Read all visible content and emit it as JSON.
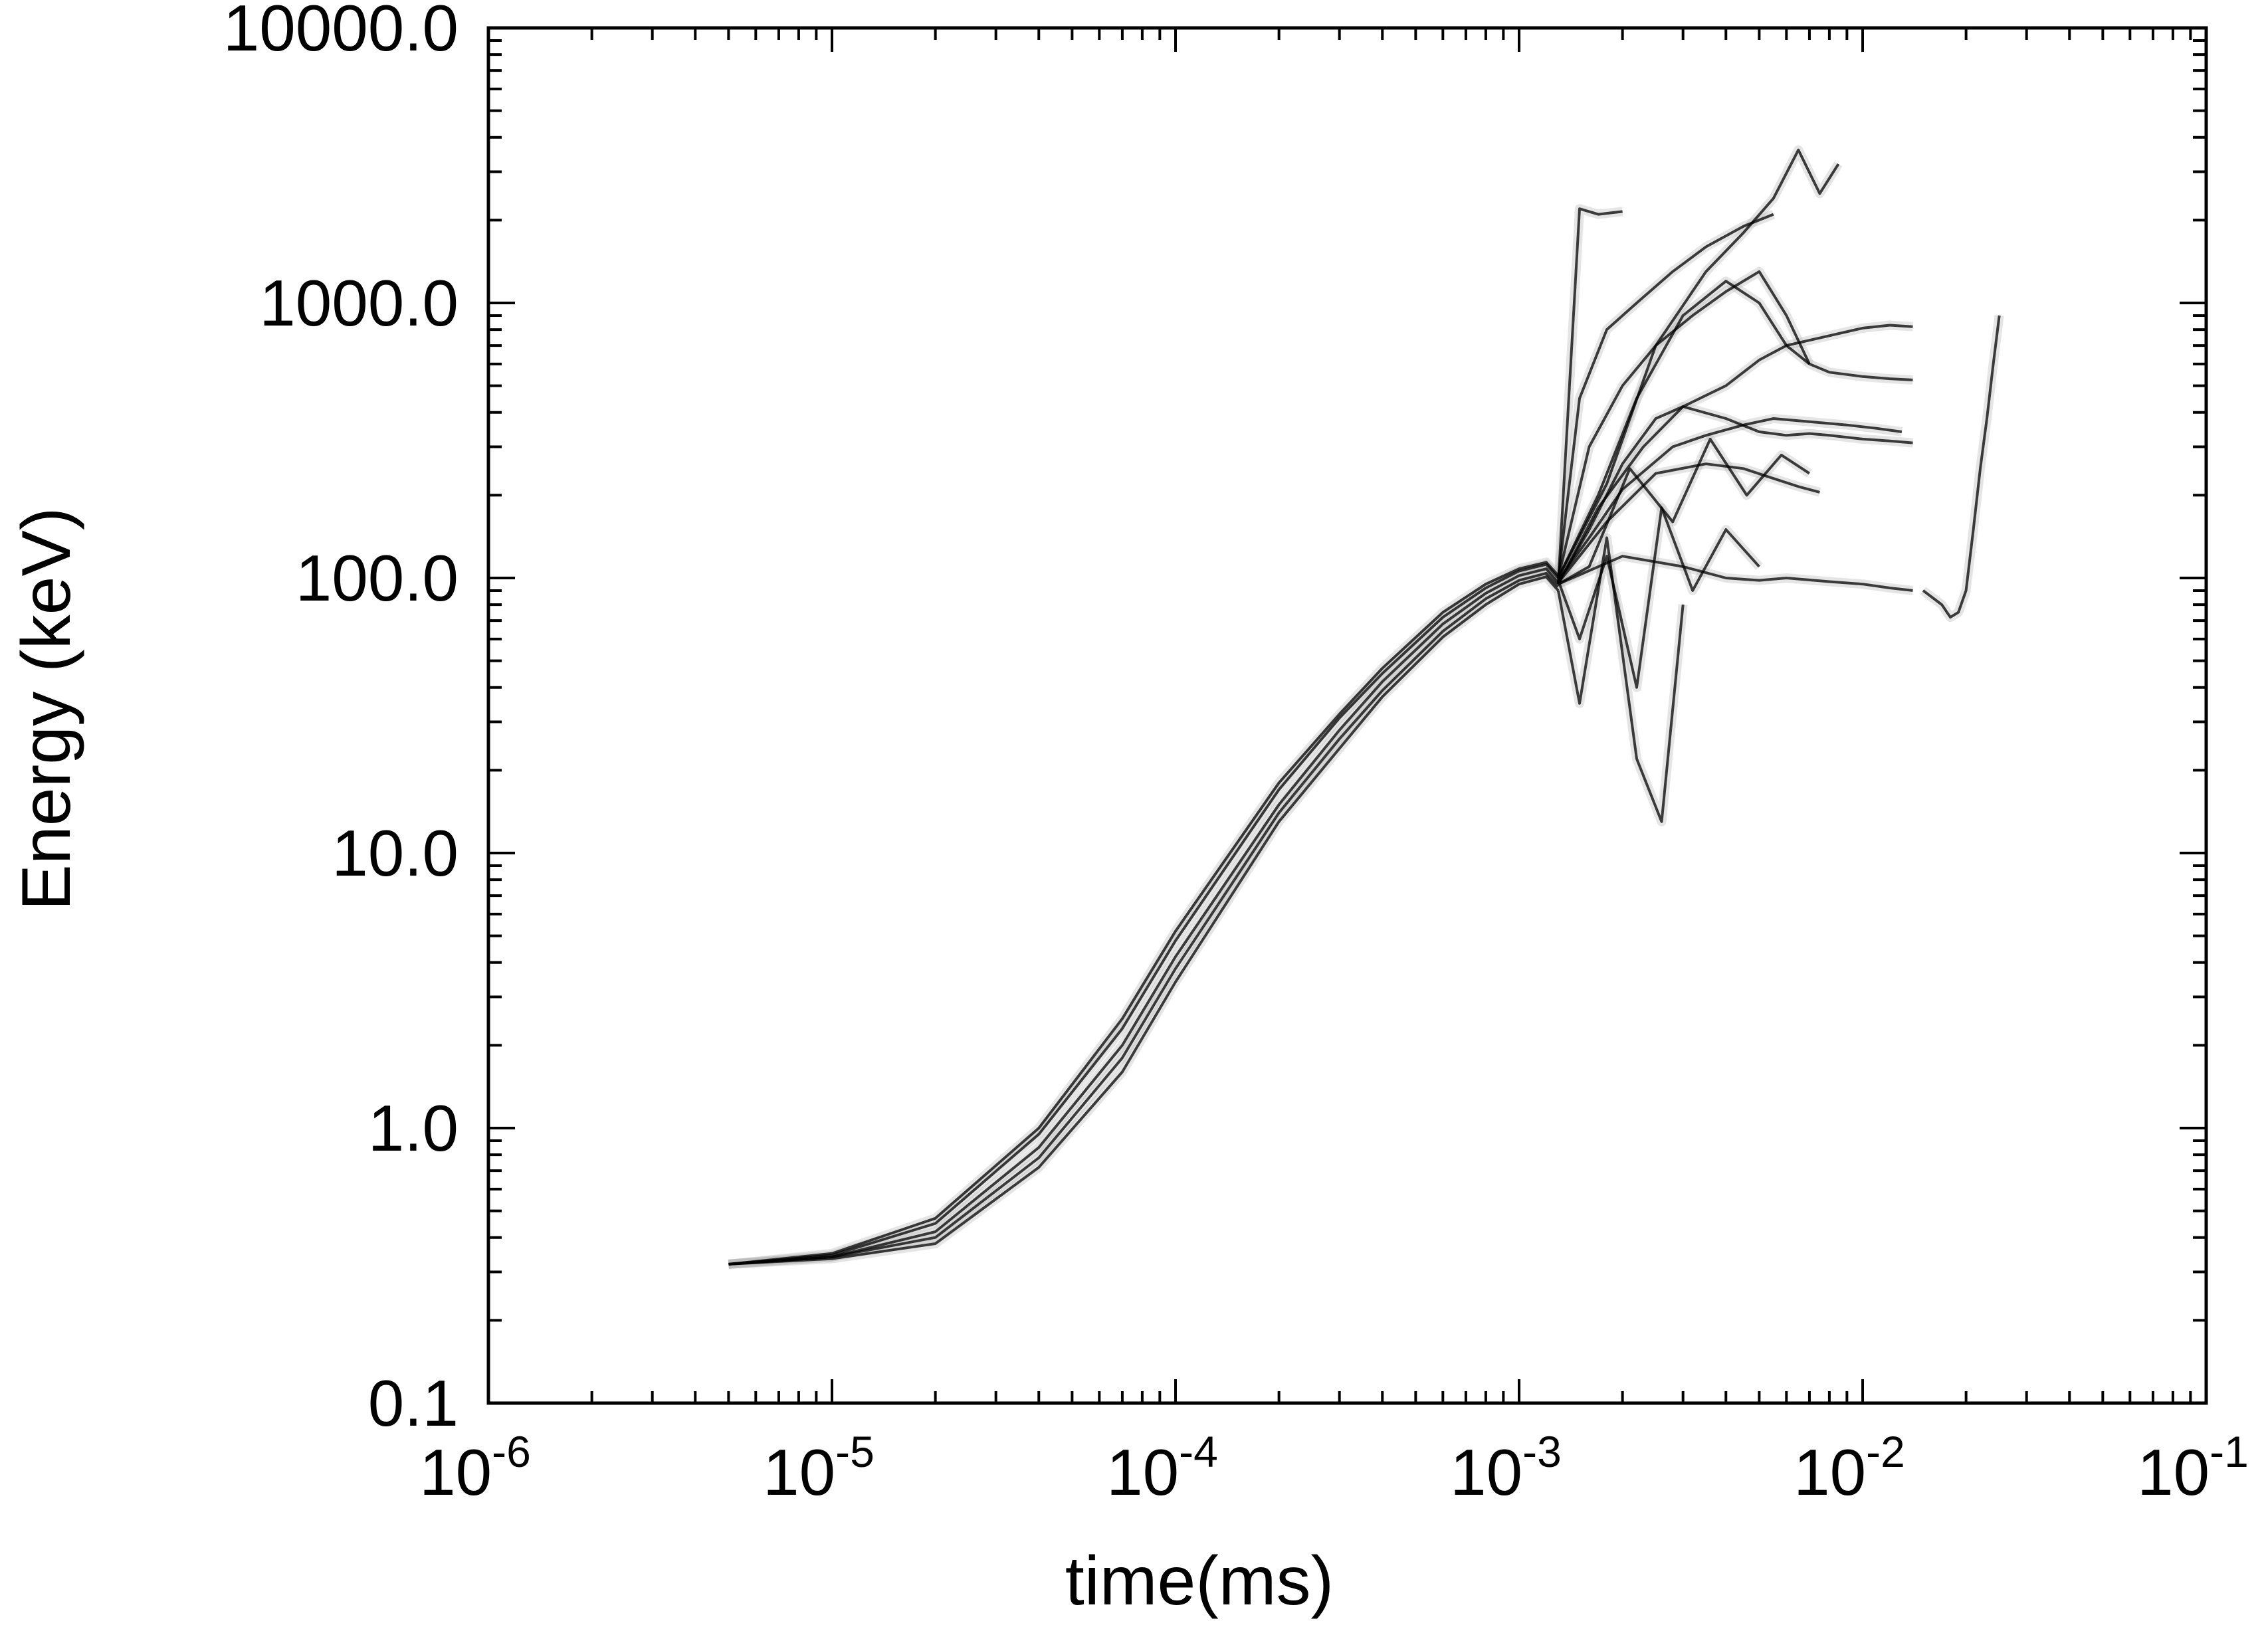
{
  "chart_data": {
    "type": "line",
    "title": "",
    "xlabel": "time(ms)",
    "ylabel": "Energy (keV)",
    "x_scale": "log",
    "y_scale": "log",
    "xlim": [
      1e-06,
      0.1
    ],
    "ylim": [
      0.1,
      10000
    ],
    "grid": false,
    "legend": "none",
    "x_ticks": [
      {
        "value": 1e-06,
        "base": "10",
        "exp": "-6"
      },
      {
        "value": 1e-05,
        "base": "10",
        "exp": "-5"
      },
      {
        "value": 0.0001,
        "base": "10",
        "exp": "-4"
      },
      {
        "value": 0.001,
        "base": "10",
        "exp": "-3"
      },
      {
        "value": 0.01,
        "base": "10",
        "exp": "-2"
      },
      {
        "value": 0.1,
        "base": "10",
        "exp": "-1"
      }
    ],
    "y_ticks": [
      {
        "value": 0.1,
        "label": "0.1"
      },
      {
        "value": 1,
        "label": "1.0"
      },
      {
        "value": 10,
        "label": "10.0"
      },
      {
        "value": 100,
        "label": "100.0"
      },
      {
        "value": 1000,
        "label": "1000.0"
      },
      {
        "value": 10000,
        "label": "10000.0"
      }
    ],
    "line_color": "#000000",
    "faint_line_color": "#b4b4b4",
    "series": [
      {
        "x": [
          5e-06,
          1e-05,
          2e-05,
          4e-05,
          7e-05,
          0.0001,
          0.0002,
          0.0003,
          0.0004,
          0.0006,
          0.0008,
          0.001,
          0.0012,
          0.0013
        ],
        "y": [
          0.32,
          0.34,
          0.42,
          0.85,
          2.0,
          4.2,
          15,
          28,
          42,
          68,
          88,
          102,
          108,
          96
        ]
      },
      {
        "x": [
          5e-06,
          1e-05,
          2e-05,
          4e-05,
          7e-05,
          0.0001,
          0.0002,
          0.0003,
          0.0004,
          0.0006,
          0.0008,
          0.001,
          0.0012,
          0.0013
        ],
        "y": [
          0.32,
          0.345,
          0.45,
          0.95,
          2.3,
          4.8,
          17,
          31,
          45,
          72,
          92,
          106,
          112,
          100
        ]
      },
      {
        "x": [
          5e-06,
          1e-05,
          2e-05,
          4e-05,
          7e-05,
          0.0001,
          0.0002,
          0.0003,
          0.0004,
          0.0006,
          0.0008,
          0.001,
          0.0012,
          0.0013
        ],
        "y": [
          0.32,
          0.34,
          0.4,
          0.78,
          1.8,
          3.8,
          14,
          26,
          39,
          64,
          84,
          98,
          104,
          93
        ]
      },
      {
        "x": [
          5e-06,
          1e-05,
          2e-05,
          4e-05,
          7e-05,
          0.0001,
          0.0002,
          0.0003,
          0.0004,
          0.0006,
          0.0008,
          0.001,
          0.0012,
          0.0013
        ],
        "y": [
          0.32,
          0.35,
          0.47,
          1.0,
          2.5,
          5.2,
          18,
          32,
          47,
          75,
          95,
          108,
          114,
          102
        ]
      },
      {
        "x": [
          5e-06,
          1e-05,
          2e-05,
          4e-05,
          7e-05,
          0.0001,
          0.0002,
          0.0003,
          0.0004,
          0.0006,
          0.0008,
          0.001,
          0.0012,
          0.0013
        ],
        "y": [
          0.32,
          0.335,
          0.38,
          0.72,
          1.6,
          3.4,
          13,
          24,
          37,
          61,
          80,
          95,
          101,
          90
        ]
      },
      {
        "x": [
          0.0013,
          0.0016,
          0.002,
          0.0025,
          0.003,
          0.004,
          0.005,
          0.006,
          0.008,
          0.01,
          0.012,
          0.014
        ],
        "y": [
          96,
          150,
          260,
          380,
          420,
          500,
          620,
          700,
          760,
          810,
          830,
          820
        ]
      },
      {
        "x": [
          0.0013,
          0.0018,
          0.0025,
          0.0035,
          0.0045,
          0.0055,
          0.0065,
          0.0075,
          0.0085
        ],
        "y": [
          100,
          220,
          700,
          1300,
          1800,
          2400,
          3600,
          2500,
          3200
        ]
      },
      {
        "x": [
          0.0013,
          0.0017,
          0.0023,
          0.003,
          0.004,
          0.005,
          0.006,
          0.007,
          0.008,
          0.01,
          0.012,
          0.014
        ],
        "y": [
          95,
          180,
          300,
          420,
          380,
          340,
          330,
          335,
          330,
          320,
          315,
          310
        ]
      },
      {
        "x": [
          0.0013,
          0.0016,
          0.002,
          0.0028,
          0.0035,
          0.0045,
          0.0055,
          0.007,
          0.009,
          0.011,
          0.013
        ],
        "y": [
          98,
          140,
          210,
          300,
          330,
          360,
          380,
          370,
          360,
          350,
          340
        ]
      },
      {
        "x": [
          0.0013,
          0.0018,
          0.0025,
          0.0035,
          0.0045,
          0.0055,
          0.0065,
          0.0075
        ],
        "y": [
          96,
          160,
          240,
          260,
          250,
          230,
          215,
          205
        ]
      },
      {
        "x": [
          0.0013,
          0.002,
          0.003,
          0.004,
          0.005,
          0.006,
          0.008,
          0.01,
          0.012,
          0.014
        ],
        "y": [
          95,
          120,
          110,
          100,
          98,
          100,
          97,
          95,
          92,
          90
        ]
      },
      {
        "x": [
          0.0013,
          0.0017,
          0.0022,
          0.003,
          0.004,
          0.005,
          0.006,
          0.007,
          0.008,
          0.01,
          0.012,
          0.014
        ],
        "y": [
          100,
          200,
          450,
          900,
          1200,
          1000,
          700,
          600,
          560,
          540,
          530,
          525
        ]
      },
      {
        "x": [
          0.0013,
          0.0015,
          0.0018,
          0.0022,
          0.0026,
          0.0032,
          0.004,
          0.005
        ],
        "y": [
          98,
          60,
          120,
          40,
          180,
          90,
          150,
          110
        ]
      },
      {
        "x": [
          0.0013,
          0.0015,
          0.0018,
          0.0022,
          0.0026,
          0.003
        ],
        "y": [
          90,
          35,
          140,
          22,
          13,
          80
        ]
      },
      {
        "x": [
          0.0013,
          0.0016,
          0.002,
          0.0025,
          0.0032,
          0.004,
          0.005,
          0.006,
          0.007
        ],
        "y": [
          100,
          300,
          500,
          700,
          900,
          1100,
          1300,
          900,
          600
        ]
      },
      {
        "x": [
          0.0013,
          0.0016,
          0.0021,
          0.0028,
          0.0036,
          0.0046,
          0.0058,
          0.007
        ],
        "y": [
          95,
          110,
          250,
          160,
          320,
          200,
          280,
          240
        ]
      },
      {
        "x": [
          0.0013,
          0.0015,
          0.0017,
          0.002
        ],
        "y": [
          95,
          2200,
          2100,
          2150
        ]
      },
      {
        "x": [
          0.0013,
          0.0015,
          0.0018,
          0.0022,
          0.0028,
          0.0035,
          0.0045,
          0.0055
        ],
        "y": [
          100,
          450,
          800,
          1000,
          1300,
          1600,
          1900,
          2100
        ]
      },
      {
        "x": [
          0.015,
          0.017,
          0.018,
          0.019,
          0.02,
          0.021,
          0.022,
          0.023,
          0.024,
          0.025
        ],
        "y": [
          90,
          80,
          72,
          75,
          90,
          150,
          250,
          380,
          600,
          900
        ]
      }
    ]
  }
}
